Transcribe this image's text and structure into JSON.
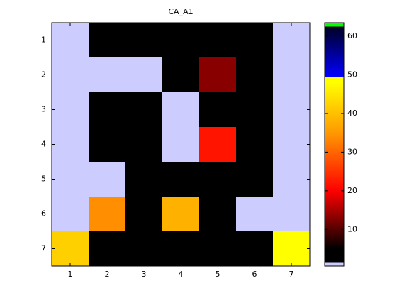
{
  "chart_data": {
    "type": "heatmap",
    "title": "CA_A1",
    "values": [
      [
        1,
        3,
        3,
        3,
        3,
        3,
        1
      ],
      [
        1,
        1,
        1,
        3,
        13,
        3,
        1
      ],
      [
        1,
        3,
        3,
        1,
        3,
        3,
        1
      ],
      [
        1,
        3,
        3,
        1,
        22,
        3,
        1
      ],
      [
        1,
        1,
        3,
        3,
        3,
        3,
        1
      ],
      [
        1,
        34,
        3,
        38,
        3,
        1,
        1
      ],
      [
        42,
        3,
        3,
        3,
        3,
        3,
        48
      ]
    ],
    "xlim": [
      0.5,
      7.5
    ],
    "xticks": [
      1,
      2,
      3,
      4,
      5,
      6,
      7
    ],
    "ylim": [
      0.5,
      7.5
    ],
    "yticks": [
      1,
      2,
      3,
      4,
      5,
      6,
      7
    ],
    "y_reversed": true,
    "clim": [
      0.5,
      63.5
    ],
    "cticks": [
      10,
      20,
      30,
      40,
      50,
      60
    ],
    "colorscale": [
      [
        0.5,
        "#ccccff"
      ],
      [
        1.5,
        "#ccccff"
      ],
      [
        1.5,
        "#000000"
      ],
      [
        5,
        "#000000"
      ],
      [
        20,
        "#ff0000"
      ],
      [
        35,
        "#ff9900"
      ],
      [
        48,
        "#ffff00"
      ],
      [
        49.5,
        "#ffff00"
      ],
      [
        49.5,
        "#0000ff"
      ],
      [
        62.5,
        "#000022"
      ],
      [
        62.5,
        "#00ff00"
      ],
      [
        63.5,
        "#00ff00"
      ]
    ]
  }
}
